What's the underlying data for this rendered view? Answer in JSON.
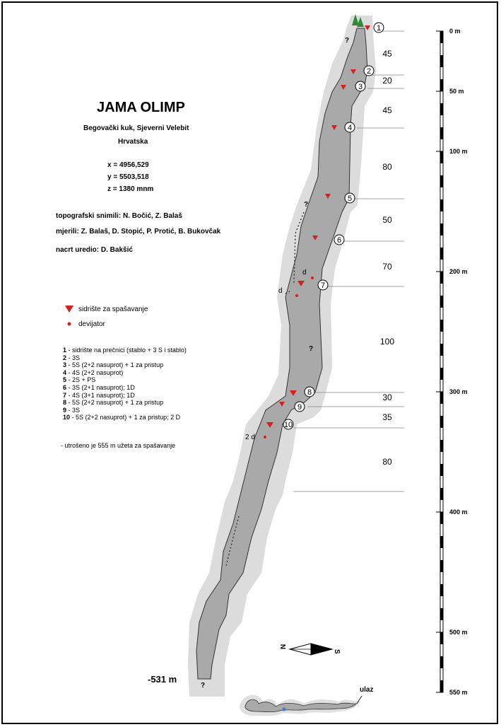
{
  "header": {
    "title": "JAMA OLIMP",
    "location": "Begovački kuk, Sjeverni Velebit",
    "country": "Hrvatska",
    "coord_x": "x = 4956,529",
    "coord_y": "y = 5503,518",
    "coord_z": "z = 1380 mnm"
  },
  "credits": {
    "topography": "topografski snimili: N. Bočić, Z. Balaš",
    "surveyed": "mjerili: Z. Balaš, D. Stopić, P. Protić, B. Bukovčak",
    "drawn": "nacrt uredio: D. Bakšić"
  },
  "legend": {
    "anchor_label": "sidrište za spašavanje",
    "deviator_label": "devijator",
    "anchor_color": "#d32020",
    "deviator_color": "#d32020"
  },
  "anchors_list": [
    {
      "num": "1",
      "text": " - sidrište na prečnici (stablo + 3 S i stablo)"
    },
    {
      "num": "2",
      "text": " - 3S"
    },
    {
      "num": "3",
      "text": " - 5S (2+2 nasuprot) + 1 za pristup"
    },
    {
      "num": "4",
      "text": " - 4S (2+2 nasuprot)"
    },
    {
      "num": "5",
      "text": " - 2S + PS"
    },
    {
      "num": "6",
      "text": " - 3S (2+1 nasuprot); 1D"
    },
    {
      "num": "7",
      "text": " - 4S (3+1 nasuprot); 1D"
    },
    {
      "num": "8",
      "text": " - 5S (2+2 nasuprot) + 1 za pristup"
    },
    {
      "num": "9",
      "text": " - 3S"
    },
    {
      "num": "10",
      "text": " - 5S (2+2 nasuprot) + 1 za pristup; 2 D"
    }
  ],
  "note": "- utrošeno je 555 m užeta za spašavanje",
  "scale": {
    "labels": [
      {
        "label": "0 m",
        "depth": 0
      },
      {
        "label": "50 m",
        "depth": 50
      },
      {
        "label": "100 m",
        "depth": 100
      },
      {
        "label": "200 m",
        "depth": 200
      },
      {
        "label": "300 m",
        "depth": 300
      },
      {
        "label": "400 m",
        "depth": 400
      },
      {
        "label": "500 m",
        "depth": 500
      },
      {
        "label": "550 m",
        "depth": 550
      }
    ]
  },
  "section_lengths": [
    "45",
    "20",
    "45",
    "80",
    "50",
    "70",
    "100",
    "30",
    "35",
    "80"
  ],
  "stations": [
    "1",
    "2",
    "3",
    "4",
    "5",
    "6",
    "7",
    "8",
    "9",
    "10"
  ],
  "markers": {
    "question": "?",
    "deviator_d": "d",
    "deviator_2d": "2 d"
  },
  "final_depth": "-531 m",
  "compass": {
    "north": "N",
    "south": "S"
  },
  "plan_label": "ulaz"
}
